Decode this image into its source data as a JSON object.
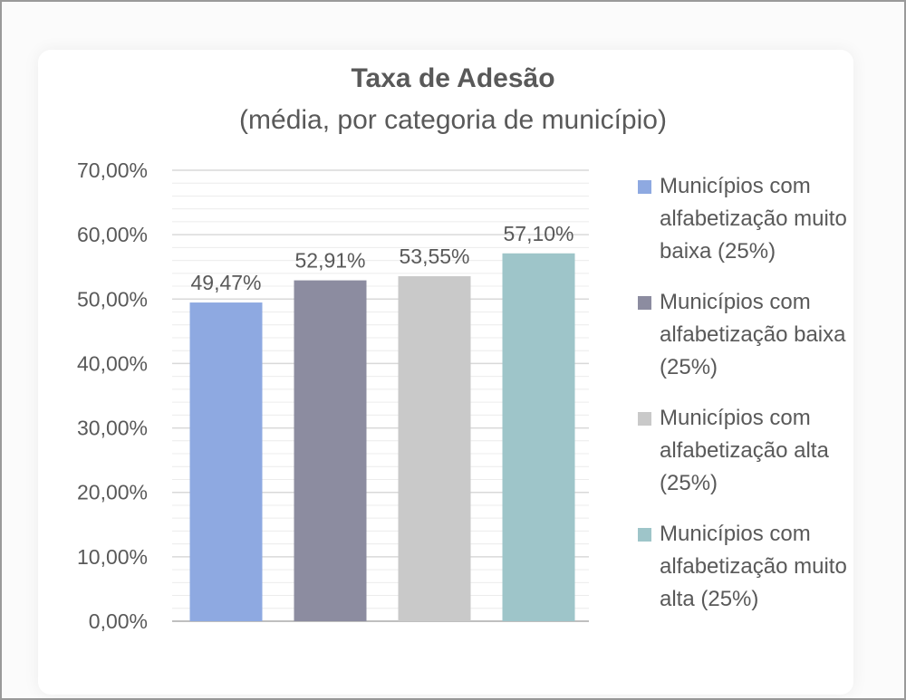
{
  "chart_data": {
    "type": "bar",
    "title": "Taxa de Adesão",
    "subtitle": "(média, por categoria de município)",
    "categories": [
      "Municípios com alfabetização muito baixa (25%)",
      "Municípios com alfabetização baixa (25%)",
      "Municípios com alfabetização alta (25%)",
      "Municípios com alfabetização muito alta (25%)"
    ],
    "values": [
      49.47,
      52.91,
      53.55,
      57.1
    ],
    "data_labels": [
      "49,47%",
      "52,91%",
      "53,55%",
      "57,10%"
    ],
    "colors": [
      "#8ea9e1",
      "#8c8ca0",
      "#c9c9c9",
      "#9ec5c9"
    ],
    "ylim": [
      0,
      70
    ],
    "y_ticks": [
      {
        "value": 0,
        "label": "0,00%"
      },
      {
        "value": 10,
        "label": "10,00%"
      },
      {
        "value": 20,
        "label": "20,00%"
      },
      {
        "value": 30,
        "label": "30,00%"
      },
      {
        "value": 40,
        "label": "40,00%"
      },
      {
        "value": 50,
        "label": "50,00%"
      },
      {
        "value": 60,
        "label": "60,00%"
      },
      {
        "value": 70,
        "label": "70,00%"
      }
    ],
    "grid": true,
    "legend_position": "right",
    "legend_lines": [
      [
        "Municípios com",
        "alfabetização muito",
        "baixa (25%)"
      ],
      [
        "Municípios com",
        "alfabetização baixa",
        "(25%)"
      ],
      [
        "Municípios com",
        "alfabetização alta",
        "(25%)"
      ],
      [
        "Municípios com",
        "alfabetização muito",
        "alta (25%)"
      ]
    ]
  }
}
